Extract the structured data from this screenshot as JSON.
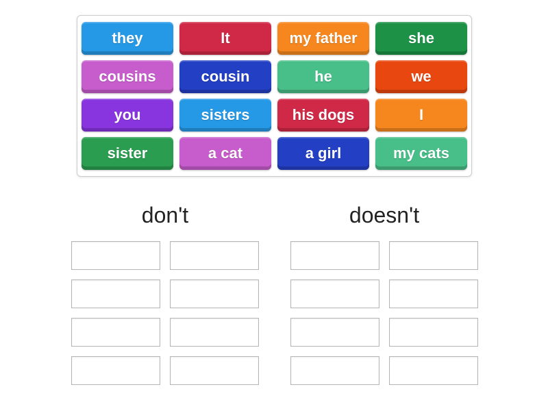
{
  "page": {
    "background_color": "#ffffff"
  },
  "tray": {
    "border_color": "#cccccc",
    "columns": 4,
    "rows": 4,
    "tiles": [
      {
        "label": "they",
        "color": "#2699e6"
      },
      {
        "label": "It",
        "color": "#d02947"
      },
      {
        "label": "my father",
        "color": "#f6871f"
      },
      {
        "label": "she",
        "color": "#1d9247"
      },
      {
        "label": "cousins",
        "color": "#c75dcc"
      },
      {
        "label": "cousin",
        "color": "#233fc4"
      },
      {
        "label": "he",
        "color": "#48be88"
      },
      {
        "label": "we",
        "color": "#e8470f"
      },
      {
        "label": "you",
        "color": "#8835df"
      },
      {
        "label": "sisters",
        "color": "#2699e6"
      },
      {
        "label": "his dogs",
        "color": "#d02947"
      },
      {
        "label": "I",
        "color": "#f6871f"
      },
      {
        "label": "sister",
        "color": "#2a9d50"
      },
      {
        "label": "a cat",
        "color": "#c75dcc"
      },
      {
        "label": "a girl",
        "color": "#233fc4"
      },
      {
        "label": "my cats",
        "color": "#48be88"
      }
    ],
    "tile_text_color": "#ffffff"
  },
  "groups": [
    {
      "label": "don't",
      "slot_count": 8,
      "slot_columns": 2
    },
    {
      "label": "doesn't",
      "slot_count": 8,
      "slot_columns": 2
    }
  ],
  "slot": {
    "border_color": "#b5b5b5",
    "fill_color": "#ffffff"
  },
  "header_text_color": "#222222"
}
